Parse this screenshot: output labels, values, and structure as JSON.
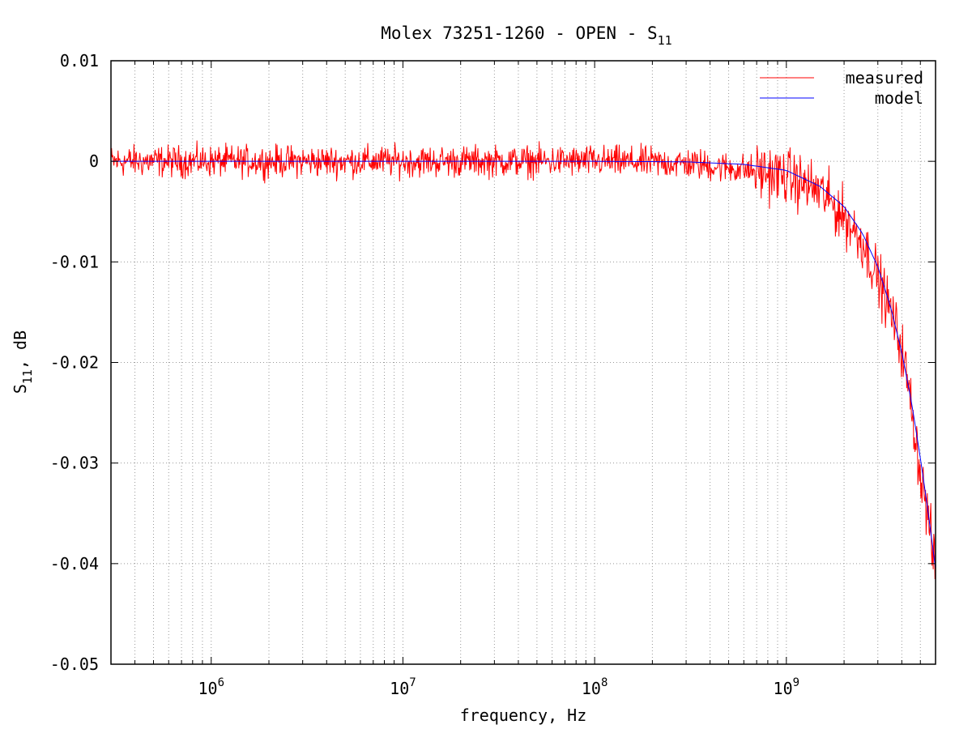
{
  "chart_data": {
    "type": "line",
    "title": "Molex 73251-1260 - OPEN - S",
    "title_subscript": "11",
    "xlabel": "frequency, Hz",
    "ylabel": "S",
    "ylabel_subscript": "11",
    "ylabel_suffix": ", dB",
    "x_scale": "log",
    "xlim": [
      300000,
      6000000000
    ],
    "ylim": [
      -0.05,
      0.01
    ],
    "grid": true,
    "legend_position": "top-right",
    "y_ticks": [
      {
        "value": 0.01,
        "label": "0.01"
      },
      {
        "value": 0.0,
        "label": "0"
      },
      {
        "value": -0.01,
        "label": "-0.01"
      },
      {
        "value": -0.02,
        "label": "-0.02"
      },
      {
        "value": -0.03,
        "label": "-0.03"
      },
      {
        "value": -0.04,
        "label": "-0.04"
      },
      {
        "value": -0.05,
        "label": "-0.05"
      }
    ],
    "x_ticks": [
      {
        "value": 1000000,
        "base": "10",
        "exp": "6"
      },
      {
        "value": 10000000,
        "base": "10",
        "exp": "7"
      },
      {
        "value": 100000000,
        "base": "10",
        "exp": "8"
      },
      {
        "value": 1000000000,
        "base": "10",
        "exp": "9"
      }
    ],
    "series": [
      {
        "name": "measured",
        "color": "#ff0000",
        "noise_amplitude": 0.0011,
        "x": [
          300000,
          1000000,
          10000000,
          100000000,
          300000000,
          600000000,
          1000000000,
          1500000000,
          2000000000,
          2500000000,
          3000000000,
          3500000000,
          4000000000,
          4500000000,
          5000000000,
          5500000000,
          6000000000
        ],
        "y": [
          0.0,
          0.0,
          0.0,
          0.0,
          -0.0002,
          -0.0008,
          -0.0015,
          -0.003,
          -0.0055,
          -0.008,
          -0.0115,
          -0.015,
          -0.0185,
          -0.0245,
          -0.031,
          -0.0355,
          -0.041
        ]
      },
      {
        "name": "model",
        "color": "#0000ff",
        "x": [
          300000,
          1000000,
          10000000,
          100000000,
          300000000,
          600000000,
          1000000000,
          1500000000,
          2000000000,
          2500000000,
          3000000000,
          3500000000,
          4000000000,
          4500000000,
          5000000000,
          5500000000,
          6000000000
        ],
        "y": [
          0.0,
          0.0,
          0.0,
          0.0,
          -5e-05,
          -0.0003,
          -0.0009,
          -0.0025,
          -0.0045,
          -0.0072,
          -0.0105,
          -0.0145,
          -0.019,
          -0.024,
          -0.0295,
          -0.035,
          -0.0405
        ]
      }
    ]
  }
}
